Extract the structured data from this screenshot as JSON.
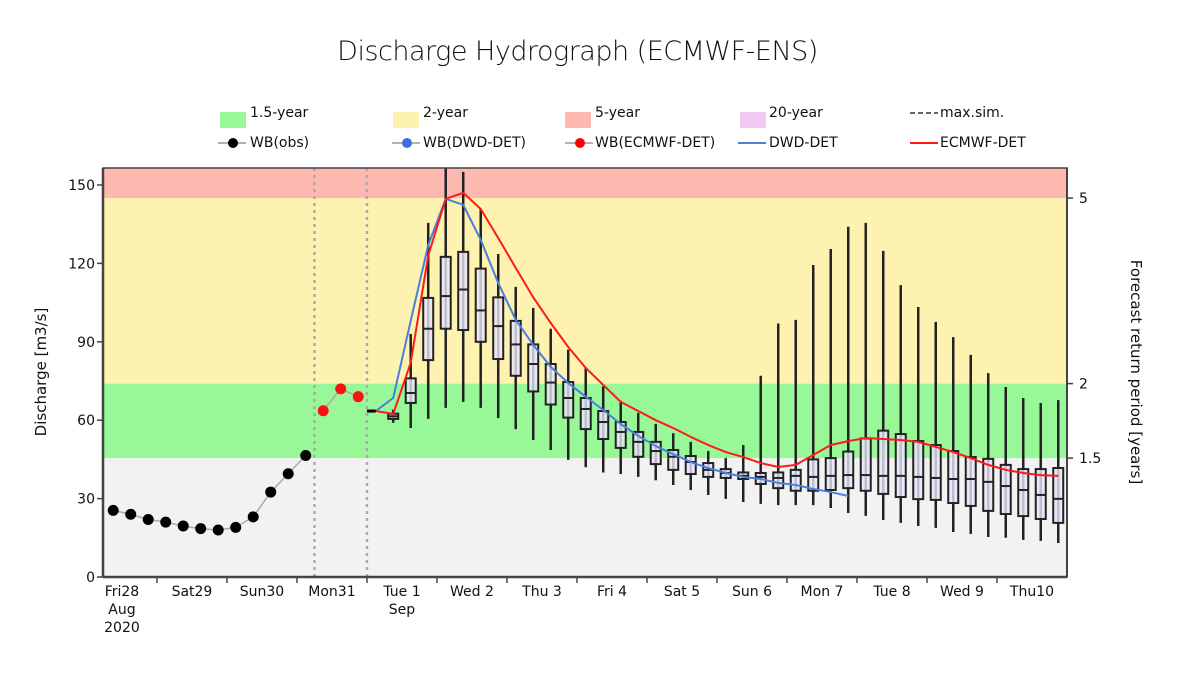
{
  "chart_data": {
    "type": "boxplot-timeseries",
    "title": "Discharge Hydrograph (ECMWF-ENS)",
    "ylabel": "Discharge [m3/s]",
    "y2label": "Forecast return period [years]",
    "ylim": [
      0,
      156.5
    ],
    "yticks": [
      0,
      30,
      60,
      90,
      120,
      150
    ],
    "xlim": [
      "2020-08-28T05:30",
      "2020-09-11T00:00"
    ],
    "day_labels": [
      {
        "day": "2020-08-28",
        "lines": [
          "Fri28",
          "Aug",
          "2020"
        ]
      },
      {
        "day": "2020-08-29",
        "lines": [
          "Sat29"
        ]
      },
      {
        "day": "2020-08-30",
        "lines": [
          "Sun30"
        ]
      },
      {
        "day": "2020-08-31",
        "lines": [
          "Mon31"
        ]
      },
      {
        "day": "2020-09-01",
        "lines": [
          "Tue 1",
          "Sep"
        ]
      },
      {
        "day": "2020-09-02",
        "lines": [
          "Wed 2"
        ]
      },
      {
        "day": "2020-09-03",
        "lines": [
          "Thu 3"
        ]
      },
      {
        "day": "2020-09-04",
        "lines": [
          "Fri 4"
        ]
      },
      {
        "day": "2020-09-05",
        "lines": [
          "Sat 5"
        ]
      },
      {
        "day": "2020-09-06",
        "lines": [
          "Sun 6"
        ]
      },
      {
        "day": "2020-09-07",
        "lines": [
          "Mon 7"
        ]
      },
      {
        "day": "2020-09-08",
        "lines": [
          "Tue 8"
        ]
      },
      {
        "day": "2020-09-09",
        "lines": [
          "Wed 9"
        ]
      },
      {
        "day": "2020-09-10",
        "lines": [
          "Thu10"
        ]
      }
    ],
    "return_period_thresholds": [
      {
        "label": "1.5-year",
        "value": 45.5,
        "axis_label": "1.5",
        "color": "#98f898"
      },
      {
        "label": "2-year",
        "value": 74,
        "axis_label": "2",
        "color": "#fdf2b0"
      },
      {
        "label": "5-year",
        "value": 145,
        "axis_label": "5",
        "color": "#fdb8b0"
      },
      {
        "label": "20-year",
        "value": null,
        "axis_label": "",
        "color": "#f0c8f0"
      }
    ],
    "below_threshold_color": "#f2f2f2",
    "vertical_markers": [
      "2020-08-31T06:00",
      "2020-09-01T00:00"
    ],
    "legend": {
      "row1": [
        {
          "label": "1.5-year",
          "kind": "swatch",
          "color": "#98f898"
        },
        {
          "label": "2-year",
          "kind": "swatch",
          "color": "#fdf2b0"
        },
        {
          "label": "5-year",
          "kind": "swatch",
          "color": "#fdb8b0"
        },
        {
          "label": "20-year",
          "kind": "swatch",
          "color": "#f0c8f0"
        },
        {
          "label": "max.sim.",
          "kind": "dashed",
          "color": "#666666"
        }
      ],
      "row2": [
        {
          "label": "WB(obs)",
          "kind": "dot",
          "color": "#000000"
        },
        {
          "label": "WB(DWD-DET)",
          "kind": "dot",
          "color": "#3a6fe0"
        },
        {
          "label": "WB(ECMWF-DET)",
          "kind": "dot",
          "color": "#ff0000"
        },
        {
          "label": "DWD-DET",
          "kind": "line",
          "color": "#4a7fe0"
        },
        {
          "label": "ECMWF-DET",
          "kind": "line",
          "color": "#ff1a1a"
        }
      ]
    },
    "series": {
      "wb_obs": {
        "name": "WB(obs)",
        "color": "#000000",
        "points": [
          [
            "2020-08-28T09:00",
            25.5
          ],
          [
            "2020-08-28T15:00",
            24
          ],
          [
            "2020-08-28T21:00",
            22
          ],
          [
            "2020-08-29T03:00",
            21
          ],
          [
            "2020-08-29T09:00",
            19.5
          ],
          [
            "2020-08-29T15:00",
            18.5
          ],
          [
            "2020-08-29T21:00",
            18
          ],
          [
            "2020-08-30T03:00",
            19
          ],
          [
            "2020-08-30T09:00",
            23
          ],
          [
            "2020-08-30T15:00",
            32.5
          ],
          [
            "2020-08-30T21:00",
            39.5
          ],
          [
            "2020-08-31T03:00",
            46.5
          ]
        ]
      },
      "wb_ecmwf": {
        "name": "WB(ECMWF-DET)",
        "color": "#ff1010",
        "points": [
          [
            "2020-08-31T09:00",
            63.6
          ],
          [
            "2020-08-31T15:00",
            72
          ],
          [
            "2020-08-31T21:00",
            69
          ]
        ]
      },
      "initial": {
        "color": "#000000",
        "points": [
          [
            "2020-09-01T00:00",
            63.5
          ],
          [
            "2020-09-01T03:00",
            63.5
          ]
        ]
      },
      "dwd_det": {
        "name": "DWD-DET",
        "color": "#4a7fe0",
        "points": [
          [
            "2020-09-01T03:00",
            63.5
          ],
          [
            "2020-09-01T09:00",
            68.5
          ],
          [
            "2020-09-01T15:00",
            98
          ],
          [
            "2020-09-01T21:00",
            127
          ],
          [
            "2020-09-02T03:00",
            144.7
          ],
          [
            "2020-09-02T09:00",
            142.4
          ],
          [
            "2020-09-02T15:00",
            129
          ],
          [
            "2020-09-02T21:00",
            112.5
          ],
          [
            "2020-09-03T03:00",
            98.4
          ],
          [
            "2020-09-03T09:00",
            88.8
          ],
          [
            "2020-09-03T15:00",
            80.4
          ],
          [
            "2020-09-03T21:00",
            74.2
          ],
          [
            "2020-09-04T03:00",
            69
          ],
          [
            "2020-09-04T09:00",
            63.9
          ],
          [
            "2020-09-04T15:00",
            58.5
          ],
          [
            "2020-09-04T21:00",
            54
          ],
          [
            "2020-09-05T03:00",
            50.1
          ],
          [
            "2020-09-05T09:00",
            47
          ],
          [
            "2020-09-05T15:00",
            44
          ],
          [
            "2020-09-05T21:00",
            41.7
          ],
          [
            "2020-09-06T03:00",
            39.8
          ],
          [
            "2020-09-06T09:00",
            38.3
          ],
          [
            "2020-09-06T15:00",
            37.5
          ],
          [
            "2020-09-06T21:00",
            36
          ],
          [
            "2020-09-07T03:00",
            35.2
          ],
          [
            "2020-09-07T09:00",
            33.7
          ],
          [
            "2020-09-07T15:00",
            32.5
          ],
          [
            "2020-09-07T21:00",
            31
          ]
        ]
      },
      "ecmwf_det": {
        "name": "ECMWF-DET",
        "color": "#ff1a1a",
        "points": [
          [
            "2020-09-01T03:00",
            63.5
          ],
          [
            "2020-09-01T09:00",
            62.4
          ],
          [
            "2020-09-01T15:00",
            82
          ],
          [
            "2020-09-01T21:00",
            123
          ],
          [
            "2020-09-02T03:00",
            144.7
          ],
          [
            "2020-09-02T09:00",
            147
          ],
          [
            "2020-09-02T15:00",
            140.8
          ],
          [
            "2020-09-02T21:00",
            129.7
          ],
          [
            "2020-09-03T03:00",
            118.3
          ],
          [
            "2020-09-03T09:00",
            107
          ],
          [
            "2020-09-03T15:00",
            97.2
          ],
          [
            "2020-09-03T21:00",
            88
          ],
          [
            "2020-09-04T03:00",
            80
          ],
          [
            "2020-09-04T09:00",
            73.5
          ],
          [
            "2020-09-04T15:00",
            67
          ],
          [
            "2020-09-04T21:00",
            63.5
          ],
          [
            "2020-09-05T03:00",
            60
          ],
          [
            "2020-09-05T09:00",
            57
          ],
          [
            "2020-09-05T15:00",
            53.6
          ],
          [
            "2020-09-05T21:00",
            50.5
          ],
          [
            "2020-09-06T03:00",
            47.8
          ],
          [
            "2020-09-06T09:00",
            45.9
          ],
          [
            "2020-09-06T15:00",
            43.6
          ],
          [
            "2020-09-06T21:00",
            42.1
          ],
          [
            "2020-09-07T03:00",
            42.9
          ],
          [
            "2020-09-07T09:00",
            46.7
          ],
          [
            "2020-09-07T15:00",
            50.5
          ],
          [
            "2020-09-07T21:00",
            52
          ],
          [
            "2020-09-08T03:00",
            53.2
          ],
          [
            "2020-09-08T09:00",
            52.8
          ],
          [
            "2020-09-08T15:00",
            52.4
          ],
          [
            "2020-09-08T21:00",
            51.7
          ],
          [
            "2020-09-09T03:00",
            49.8
          ],
          [
            "2020-09-09T09:00",
            47.8
          ],
          [
            "2020-09-09T15:00",
            45.5
          ],
          [
            "2020-09-09T21:00",
            42.9
          ],
          [
            "2020-09-10T03:00",
            41
          ],
          [
            "2020-09-10T09:00",
            39.8
          ],
          [
            "2020-09-10T15:00",
            39
          ],
          [
            "2020-09-10T21:00",
            38.7
          ]
        ]
      }
    },
    "ensemble_boxes_columns": [
      "time",
      "min",
      "q1",
      "median",
      "q3",
      "max"
    ],
    "ensemble_boxes": [
      [
        "2020-09-01T09:00",
        59,
        60.5,
        61.5,
        62.5,
        64
      ],
      [
        "2020-09-01T15:00",
        57,
        66.6,
        70.4,
        76,
        93
      ],
      [
        "2020-09-01T21:00",
        60.5,
        83,
        95,
        106.8,
        135.5
      ],
      [
        "2020-09-02T03:00",
        64.7,
        95,
        107.5,
        122.5,
        157
      ],
      [
        "2020-09-02T09:00",
        67,
        94.5,
        110,
        124.4,
        155
      ],
      [
        "2020-09-02T15:00",
        64.7,
        90,
        102,
        118,
        141
      ],
      [
        "2020-09-02T21:00",
        60.8,
        83.4,
        96,
        107,
        123.6
      ],
      [
        "2020-09-03T03:00",
        56.6,
        77,
        89,
        98,
        111
      ],
      [
        "2020-09-03T09:00",
        52.4,
        71,
        81.5,
        89,
        103
      ],
      [
        "2020-09-03T15:00",
        48.6,
        66,
        74.4,
        81.5,
        95
      ],
      [
        "2020-09-03T21:00",
        44.8,
        61,
        68.5,
        74.6,
        87
      ],
      [
        "2020-09-04T03:00",
        42,
        56.6,
        64.3,
        68.5,
        80
      ],
      [
        "2020-09-04T09:00",
        40,
        52.8,
        59.3,
        63.5,
        73
      ],
      [
        "2020-09-04T15:00",
        39.4,
        49.4,
        55.5,
        59.3,
        67.4
      ],
      [
        "2020-09-04T21:00",
        38.3,
        46,
        51.7,
        55.5,
        62.8
      ],
      [
        "2020-09-05T03:00",
        37,
        43.2,
        48.2,
        51.7,
        58.6
      ],
      [
        "2020-09-05T09:00",
        35.2,
        41,
        46,
        48.6,
        55
      ],
      [
        "2020-09-05T15:00",
        33.3,
        39.4,
        44,
        46.3,
        51.7
      ],
      [
        "2020-09-05T21:00",
        31.4,
        38.3,
        41,
        43.6,
        48.2
      ],
      [
        "2020-09-06T03:00",
        29.9,
        37.9,
        39.8,
        41.3,
        45.5
      ],
      [
        "2020-09-06T09:00",
        28.7,
        37.5,
        38.7,
        40,
        50.5
      ],
      [
        "2020-09-06T15:00",
        28,
        35.6,
        38.3,
        39.8,
        77
      ],
      [
        "2020-09-06T21:00",
        27.5,
        34,
        37.9,
        40,
        97
      ],
      [
        "2020-09-07T03:00",
        27.5,
        33,
        38.7,
        41,
        98.4
      ],
      [
        "2020-09-07T09:00",
        27.5,
        33,
        38.3,
        45,
        119.4
      ],
      [
        "2020-09-07T15:00",
        26.4,
        33.3,
        38.7,
        45.5,
        125.5
      ],
      [
        "2020-09-07T21:00",
        24.5,
        34,
        39,
        48,
        134
      ],
      [
        "2020-09-08T03:00",
        23.4,
        33,
        39,
        53,
        135.5
      ],
      [
        "2020-09-08T09:00",
        21.8,
        31.8,
        38.7,
        56,
        124.8
      ],
      [
        "2020-09-08T15:00",
        20.7,
        30.6,
        38.7,
        54.7,
        111.7
      ],
      [
        "2020-09-08T21:00",
        19.5,
        29.8,
        38.3,
        52,
        103.3
      ],
      [
        "2020-09-09T03:00",
        18.8,
        29.5,
        37.9,
        50.5,
        97.6
      ],
      [
        "2020-09-09T09:00",
        17.2,
        28.3,
        37.5,
        48.2,
        91.8
      ],
      [
        "2020-09-09T15:00",
        16.5,
        27.2,
        37.5,
        45.9,
        85
      ],
      [
        "2020-09-09T21:00",
        15.3,
        25.3,
        36.4,
        45.2,
        78
      ],
      [
        "2020-09-10T03:00",
        15,
        24.1,
        34.8,
        42.9,
        72.7
      ],
      [
        "2020-09-10T09:00",
        14.2,
        23.3,
        33.3,
        41.3,
        68.5
      ],
      [
        "2020-09-10T15:00",
        13.8,
        22.2,
        31.4,
        41.3,
        66.6
      ],
      [
        "2020-09-10T21:00",
        13,
        20.7,
        29.9,
        41.7,
        67.7
      ]
    ]
  }
}
